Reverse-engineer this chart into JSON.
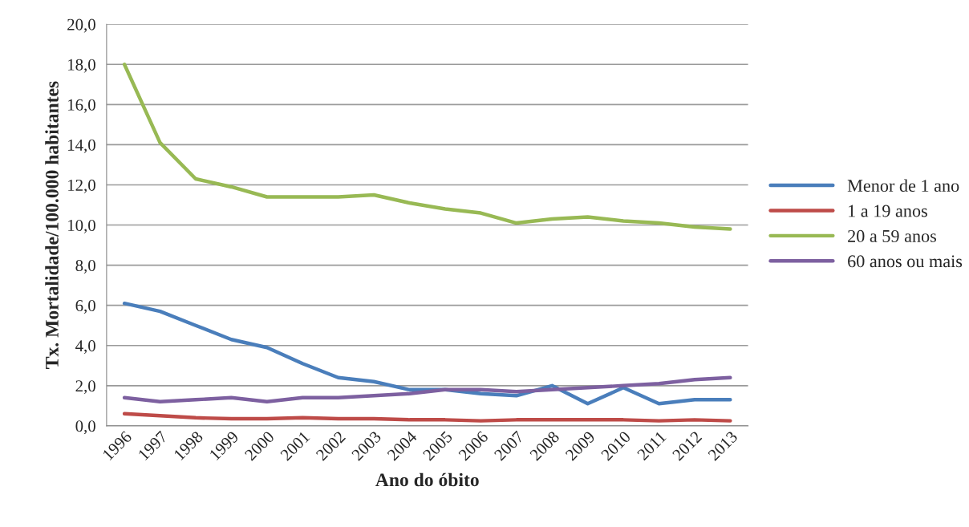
{
  "chart_data": {
    "type": "line",
    "xlabel": "Ano do óbito",
    "ylabel": "Tx. Mortalidade/100.000 habitantes",
    "categories": [
      "1996",
      "1997",
      "1998",
      "1999",
      "2000",
      "2001",
      "2002",
      "2003",
      "2004",
      "2005",
      "2006",
      "2007",
      "2008",
      "2009",
      "2010",
      "2011",
      "2012",
      "2013"
    ],
    "series": [
      {
        "name": "Menor de 1 ano",
        "color": "#4a7ebb",
        "values": [
          6.1,
          5.7,
          5.0,
          4.3,
          3.9,
          3.1,
          2.4,
          2.2,
          1.8,
          1.8,
          1.6,
          1.5,
          2.0,
          1.1,
          1.9,
          1.1,
          1.3,
          1.3
        ]
      },
      {
        "name": "1 a 19 anos",
        "color": "#be4b48",
        "values": [
          0.6,
          0.5,
          0.4,
          0.35,
          0.35,
          0.4,
          0.35,
          0.35,
          0.3,
          0.3,
          0.25,
          0.3,
          0.3,
          0.3,
          0.3,
          0.25,
          0.3,
          0.25
        ]
      },
      {
        "name": "20 a 59 anos",
        "color": "#98b954",
        "values": [
          18.0,
          14.1,
          12.3,
          11.9,
          11.4,
          11.4,
          11.4,
          11.5,
          11.1,
          10.8,
          10.6,
          10.1,
          10.3,
          10.4,
          10.2,
          10.1,
          9.9,
          9.8
        ]
      },
      {
        "name": "60 anos ou mais",
        "color": "#7d60a0",
        "values": [
          1.4,
          1.2,
          1.3,
          1.4,
          1.2,
          1.4,
          1.4,
          1.5,
          1.6,
          1.8,
          1.8,
          1.7,
          1.8,
          1.9,
          2.0,
          2.1,
          2.3,
          2.4
        ]
      }
    ],
    "ylim": [
      0,
      20
    ],
    "yticks": [
      {
        "value": 0,
        "label": "0,0"
      },
      {
        "value": 2,
        "label": "2,0"
      },
      {
        "value": 4,
        "label": "4,0"
      },
      {
        "value": 6,
        "label": "6,0"
      },
      {
        "value": 8,
        "label": "8,0"
      },
      {
        "value": 10,
        "label": "10,0"
      },
      {
        "value": 12,
        "label": "12,0"
      },
      {
        "value": 14,
        "label": "14,0"
      },
      {
        "value": 16,
        "label": "16,0"
      },
      {
        "value": 18,
        "label": "18,0"
      },
      {
        "value": 20,
        "label": "20,0"
      }
    ],
    "grid": "y",
    "legend": "right",
    "marker": "none",
    "line_style": "solid"
  }
}
